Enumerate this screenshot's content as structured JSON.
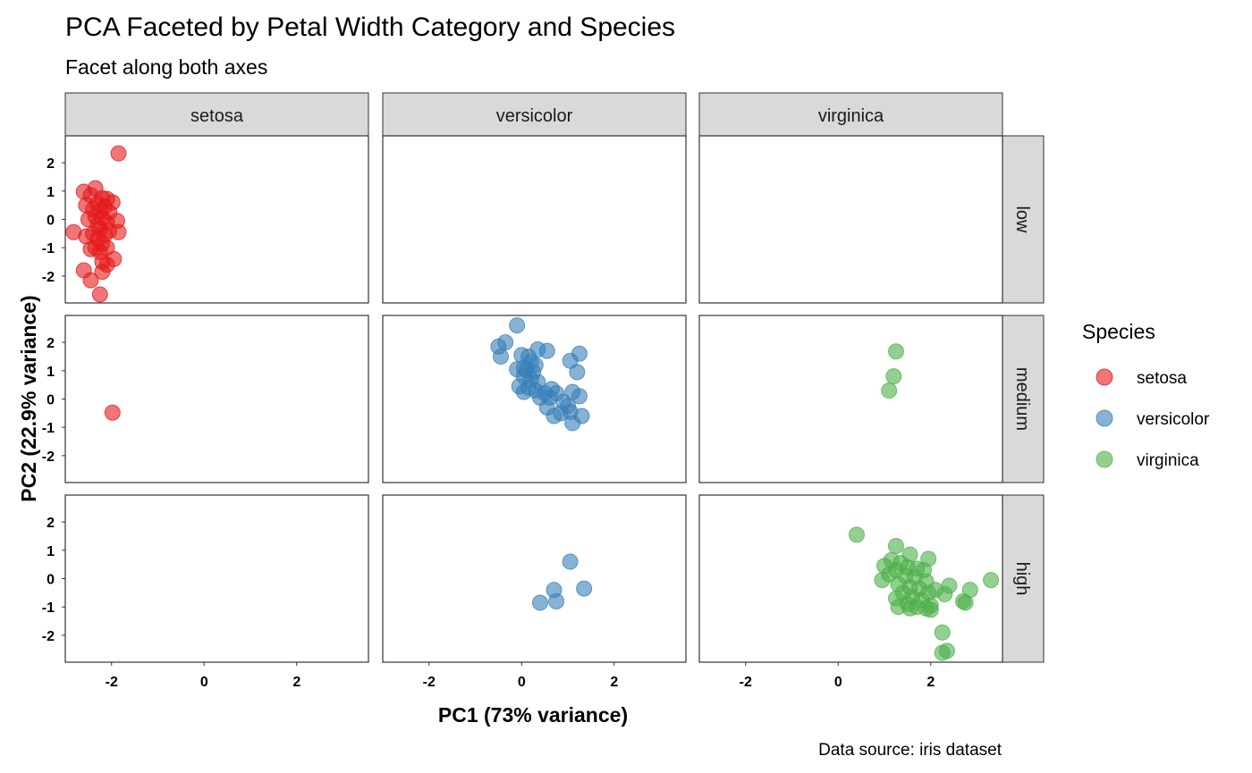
{
  "chart_data": {
    "type": "scatter",
    "title": "PCA Faceted by Petal Width Category and Species",
    "subtitle": "Facet along both axes",
    "caption": "Data source: iris dataset",
    "xlabel": "PC1 (73% variance)",
    "ylabel": "PC2 (22.9% variance)",
    "xlim": [
      -3.0,
      3.55
    ],
    "ylim": [
      -2.95,
      2.95
    ],
    "x_ticks": [
      -2,
      0,
      2
    ],
    "y_ticks": [
      -2,
      -1,
      0,
      1,
      2
    ],
    "x_tick_labels": [
      "-2",
      "0",
      "2"
    ],
    "y_tick_labels": [
      "-2",
      "-1",
      "0",
      "1",
      "2"
    ],
    "grid": false,
    "legend": {
      "title": "Species",
      "position": "right"
    },
    "facet_columns": [
      "setosa",
      "versicolor",
      "virginica"
    ],
    "facet_rows": [
      "low",
      "medium",
      "high"
    ],
    "colors": {
      "setosa": "#e41a1c",
      "versicolor": "#377eb8",
      "virginica": "#4daf4a"
    },
    "series": [
      {
        "name": "setosa",
        "points": [
          {
            "x": -1.85,
            "y": 2.33,
            "row": "low"
          },
          {
            "x": -2.6,
            "y": 0.98,
            "row": "low"
          },
          {
            "x": -2.35,
            "y": 1.1,
            "row": "low"
          },
          {
            "x": -2.45,
            "y": 0.85,
            "row": "low"
          },
          {
            "x": -2.2,
            "y": 0.75,
            "row": "low"
          },
          {
            "x": -2.1,
            "y": 0.72,
            "row": "low"
          },
          {
            "x": -1.98,
            "y": 0.6,
            "row": "low"
          },
          {
            "x": -2.3,
            "y": 0.55,
            "row": "low"
          },
          {
            "x": -2.55,
            "y": 0.5,
            "row": "low"
          },
          {
            "x": -2.15,
            "y": 0.45,
            "row": "low"
          },
          {
            "x": -2.4,
            "y": 0.35,
            "row": "low"
          },
          {
            "x": -2.25,
            "y": 0.3,
            "row": "low"
          },
          {
            "x": -2.05,
            "y": 0.25,
            "row": "low"
          },
          {
            "x": -2.35,
            "y": 0.1,
            "row": "low"
          },
          {
            "x": -2.2,
            "y": 0.05,
            "row": "low"
          },
          {
            "x": -2.5,
            "y": 0.0,
            "row": "low"
          },
          {
            "x": -1.88,
            "y": -0.05,
            "row": "low"
          },
          {
            "x": -2.1,
            "y": -0.1,
            "row": "low"
          },
          {
            "x": -2.3,
            "y": -0.2,
            "row": "low"
          },
          {
            "x": -2.25,
            "y": -0.35,
            "row": "low"
          },
          {
            "x": -2.05,
            "y": -0.4,
            "row": "low"
          },
          {
            "x": -2.82,
            "y": -0.45,
            "row": "low"
          },
          {
            "x": -1.85,
            "y": -0.45,
            "row": "low"
          },
          {
            "x": -2.4,
            "y": -0.5,
            "row": "low"
          },
          {
            "x": -2.15,
            "y": -0.55,
            "row": "low"
          },
          {
            "x": -2.55,
            "y": -0.6,
            "row": "low"
          },
          {
            "x": -2.3,
            "y": -0.7,
            "row": "low"
          },
          {
            "x": -2.2,
            "y": -0.85,
            "row": "low"
          },
          {
            "x": -2.35,
            "y": -1.0,
            "row": "low"
          },
          {
            "x": -2.1,
            "y": -1.0,
            "row": "low"
          },
          {
            "x": -2.45,
            "y": -1.05,
            "row": "low"
          },
          {
            "x": -2.25,
            "y": -1.15,
            "row": "low"
          },
          {
            "x": -1.95,
            "y": -1.4,
            "row": "low"
          },
          {
            "x": -2.2,
            "y": -1.5,
            "row": "low"
          },
          {
            "x": -2.1,
            "y": -1.6,
            "row": "low"
          },
          {
            "x": -2.6,
            "y": -1.8,
            "row": "low"
          },
          {
            "x": -2.2,
            "y": -1.85,
            "row": "low"
          },
          {
            "x": -2.45,
            "y": -2.15,
            "row": "low"
          },
          {
            "x": -2.25,
            "y": -2.65,
            "row": "low"
          },
          {
            "x": -1.98,
            "y": -0.48,
            "row": "medium"
          }
        ]
      },
      {
        "name": "versicolor",
        "points": [
          {
            "x": -0.1,
            "y": 2.6,
            "row": "medium"
          },
          {
            "x": -0.35,
            "y": 2.0,
            "row": "medium"
          },
          {
            "x": -0.5,
            "y": 1.85,
            "row": "medium"
          },
          {
            "x": 0.35,
            "y": 1.75,
            "row": "medium"
          },
          {
            "x": 0.55,
            "y": 1.7,
            "row": "medium"
          },
          {
            "x": -0.45,
            "y": 1.5,
            "row": "medium"
          },
          {
            "x": 0.0,
            "y": 1.55,
            "row": "medium"
          },
          {
            "x": 0.15,
            "y": 1.5,
            "row": "medium"
          },
          {
            "x": 1.25,
            "y": 1.6,
            "row": "medium"
          },
          {
            "x": 0.2,
            "y": 1.3,
            "row": "medium"
          },
          {
            "x": 1.05,
            "y": 1.35,
            "row": "medium"
          },
          {
            "x": 0.3,
            "y": 1.2,
            "row": "medium"
          },
          {
            "x": 0.05,
            "y": 1.1,
            "row": "medium"
          },
          {
            "x": -0.1,
            "y": 1.05,
            "row": "medium"
          },
          {
            "x": 0.1,
            "y": 1.0,
            "row": "medium"
          },
          {
            "x": 0.25,
            "y": 0.95,
            "row": "medium"
          },
          {
            "x": 1.2,
            "y": 0.95,
            "row": "medium"
          },
          {
            "x": 0.05,
            "y": 0.8,
            "row": "medium"
          },
          {
            "x": 0.2,
            "y": 0.7,
            "row": "medium"
          },
          {
            "x": 0.35,
            "y": 0.6,
            "row": "medium"
          },
          {
            "x": -0.05,
            "y": 0.45,
            "row": "medium"
          },
          {
            "x": 0.15,
            "y": 0.4,
            "row": "medium"
          },
          {
            "x": 0.65,
            "y": 0.35,
            "row": "medium"
          },
          {
            "x": 0.3,
            "y": 0.3,
            "row": "medium"
          },
          {
            "x": 0.05,
            "y": 0.25,
            "row": "medium"
          },
          {
            "x": 1.1,
            "y": 0.25,
            "row": "medium"
          },
          {
            "x": 0.5,
            "y": 0.2,
            "row": "medium"
          },
          {
            "x": 0.75,
            "y": 0.2,
            "row": "medium"
          },
          {
            "x": 1.25,
            "y": 0.1,
            "row": "medium"
          },
          {
            "x": 0.4,
            "y": 0.05,
            "row": "medium"
          },
          {
            "x": 0.6,
            "y": 0.05,
            "row": "medium"
          },
          {
            "x": 0.9,
            "y": -0.1,
            "row": "medium"
          },
          {
            "x": 1.0,
            "y": -0.25,
            "row": "medium"
          },
          {
            "x": 0.55,
            "y": -0.3,
            "row": "medium"
          },
          {
            "x": 1.05,
            "y": -0.45,
            "row": "medium"
          },
          {
            "x": 0.85,
            "y": -0.5,
            "row": "medium"
          },
          {
            "x": 0.7,
            "y": -0.6,
            "row": "medium"
          },
          {
            "x": 1.3,
            "y": -0.6,
            "row": "medium"
          },
          {
            "x": 1.1,
            "y": -0.85,
            "row": "medium"
          },
          {
            "x": 1.05,
            "y": 0.6,
            "row": "high"
          },
          {
            "x": 1.35,
            "y": -0.35,
            "row": "high"
          },
          {
            "x": 0.7,
            "y": -0.4,
            "row": "high"
          },
          {
            "x": 0.4,
            "y": -0.85,
            "row": "high"
          },
          {
            "x": 0.75,
            "y": -0.8,
            "row": "high"
          }
        ]
      },
      {
        "name": "virginica",
        "points": [
          {
            "x": 1.25,
            "y": 1.68,
            "row": "medium"
          },
          {
            "x": 1.2,
            "y": 0.8,
            "row": "medium"
          },
          {
            "x": 1.1,
            "y": 0.3,
            "row": "medium"
          },
          {
            "x": 0.4,
            "y": 1.55,
            "row": "high"
          },
          {
            "x": 1.25,
            "y": 1.15,
            "row": "high"
          },
          {
            "x": 1.55,
            "y": 0.85,
            "row": "high"
          },
          {
            "x": 1.95,
            "y": 0.7,
            "row": "high"
          },
          {
            "x": 1.15,
            "y": 0.65,
            "row": "high"
          },
          {
            "x": 1.35,
            "y": 0.55,
            "row": "high"
          },
          {
            "x": 1.0,
            "y": 0.45,
            "row": "high"
          },
          {
            "x": 1.5,
            "y": 0.4,
            "row": "high"
          },
          {
            "x": 1.7,
            "y": 0.35,
            "row": "high"
          },
          {
            "x": 1.25,
            "y": 0.3,
            "row": "high"
          },
          {
            "x": 1.85,
            "y": 0.3,
            "row": "high"
          },
          {
            "x": 1.1,
            "y": 0.15,
            "row": "high"
          },
          {
            "x": 1.45,
            "y": 0.1,
            "row": "high"
          },
          {
            "x": 1.65,
            "y": 0.05,
            "row": "high"
          },
          {
            "x": 0.95,
            "y": -0.05,
            "row": "high"
          },
          {
            "x": 1.9,
            "y": -0.1,
            "row": "high"
          },
          {
            "x": 3.3,
            "y": -0.05,
            "row": "high"
          },
          {
            "x": 1.3,
            "y": -0.2,
            "row": "high"
          },
          {
            "x": 2.4,
            "y": -0.25,
            "row": "high"
          },
          {
            "x": 1.55,
            "y": -0.3,
            "row": "high"
          },
          {
            "x": 1.75,
            "y": -0.35,
            "row": "high"
          },
          {
            "x": 2.1,
            "y": -0.4,
            "row": "high"
          },
          {
            "x": 2.85,
            "y": -0.4,
            "row": "high"
          },
          {
            "x": 1.4,
            "y": -0.5,
            "row": "high"
          },
          {
            "x": 1.95,
            "y": -0.5,
            "row": "high"
          },
          {
            "x": 2.3,
            "y": -0.55,
            "row": "high"
          },
          {
            "x": 1.6,
            "y": -0.65,
            "row": "high"
          },
          {
            "x": 1.25,
            "y": -0.7,
            "row": "high"
          },
          {
            "x": 1.8,
            "y": -0.75,
            "row": "high"
          },
          {
            "x": 2.7,
            "y": -0.8,
            "row": "high"
          },
          {
            "x": 2.75,
            "y": -0.85,
            "row": "high"
          },
          {
            "x": 1.5,
            "y": -0.9,
            "row": "high"
          },
          {
            "x": 2.0,
            "y": -0.95,
            "row": "high"
          },
          {
            "x": 1.3,
            "y": -1.0,
            "row": "high"
          },
          {
            "x": 1.7,
            "y": -1.0,
            "row": "high"
          },
          {
            "x": 1.9,
            "y": -1.05,
            "row": "high"
          },
          {
            "x": 1.55,
            "y": -1.05,
            "row": "high"
          },
          {
            "x": 2.0,
            "y": -1.1,
            "row": "high"
          },
          {
            "x": 2.25,
            "y": -1.9,
            "row": "high"
          },
          {
            "x": 2.35,
            "y": -2.55,
            "row": "high"
          },
          {
            "x": 2.25,
            "y": -2.62,
            "row": "high"
          }
        ]
      }
    ]
  }
}
